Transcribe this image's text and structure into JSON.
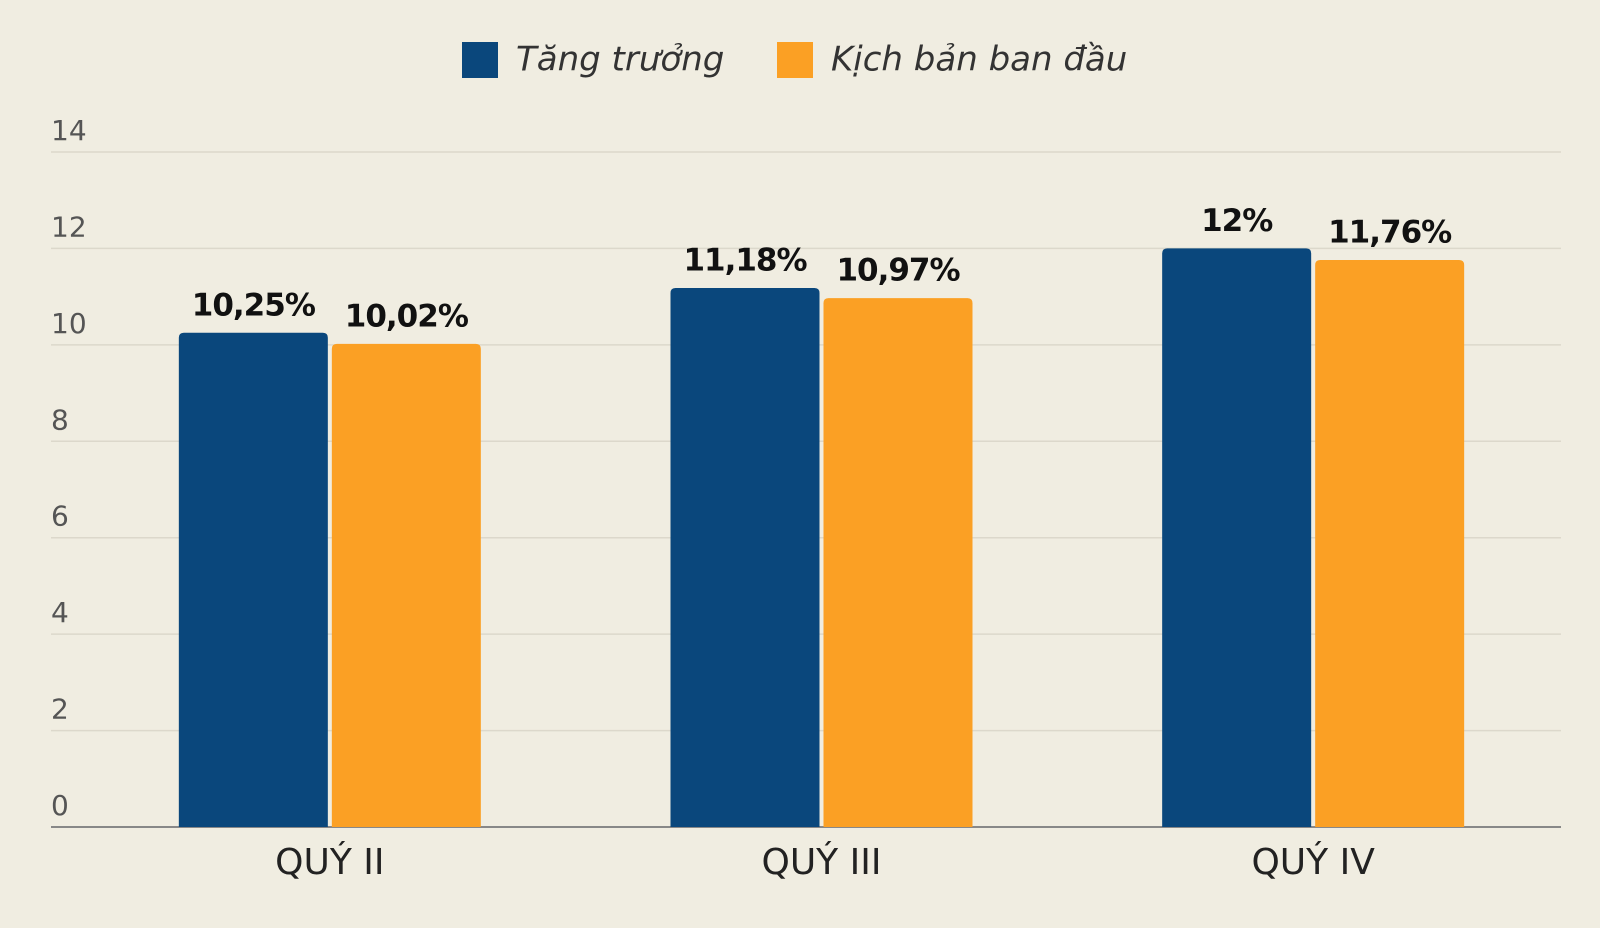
{
  "chart_data": {
    "type": "bar",
    "categories": [
      "QUÝ II",
      "QUÝ III",
      "QUÝ IV"
    ],
    "series": [
      {
        "name": "Tăng trưởng",
        "color": "#0a477c",
        "values": [
          10.25,
          11.18,
          12
        ],
        "value_labels": [
          "10,25%",
          "11,18%",
          "12%"
        ]
      },
      {
        "name": "Kịch bản ban đầu",
        "color": "#fba024",
        "values": [
          10.02,
          10.97,
          11.76
        ],
        "value_labels": [
          "10,02%",
          "10,97%",
          "11,76%"
        ]
      }
    ],
    "ylim": [
      0,
      14
    ],
    "yticks": [
      0,
      2,
      4,
      6,
      8,
      10,
      12,
      14
    ],
    "grid": true,
    "legend": "top"
  }
}
